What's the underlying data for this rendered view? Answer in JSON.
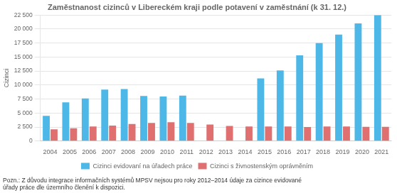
{
  "chart_data": {
    "type": "bar",
    "title": "Zaměstnanost cizinců v Libereckém kraji podle potavení v zaměstnání (k 31. 12.)",
    "ylabel": "Cizinci",
    "categories": [
      "2004",
      "2005",
      "2006",
      "2007",
      "2008",
      "2009",
      "2010",
      "2011",
      "2012",
      "2013",
      "2014",
      "2015",
      "2016",
      "2017",
      "2018",
      "2019",
      "2020",
      "2021"
    ],
    "series": [
      {
        "name": "Cizinci evidovaní na úřadech práce",
        "color": "#4db8e8",
        "values": [
          4500,
          6900,
          7600,
          9200,
          9300,
          8050,
          7950,
          8100,
          null,
          null,
          null,
          11200,
          12600,
          15300,
          17500,
          19000,
          21000,
          22500
        ]
      },
      {
        "name": "Cizinci s živnostenským oprávněním",
        "color": "#e07070",
        "values": [
          2100,
          2300,
          2600,
          2750,
          3050,
          3250,
          3350,
          3250,
          2950,
          2700,
          2600,
          2600,
          2600,
          2500,
          2600,
          2600,
          2550,
          2550
        ]
      }
    ],
    "ylim": [
      0,
      22500
    ],
    "yticks": [
      0,
      {
        "value": 2500,
        "label": "2 500"
      },
      {
        "value": 5000,
        "label": "5 000"
      },
      {
        "value": 7500,
        "label": "7 500"
      },
      {
        "value": 10000,
        "label": "10 000"
      },
      {
        "value": 12500,
        "label": "12 500"
      },
      {
        "value": 15000,
        "label": "15 000"
      },
      {
        "value": 17500,
        "label": "17 500"
      },
      {
        "value": 20000,
        "label": "20 000"
      },
      {
        "value": 22500,
        "label": "22 500"
      }
    ],
    "grid": true,
    "legend": "bottom",
    "annotations": [
      "Pozn.: Z důvodu integrace informačních systémů MPSV nejsou pro roky 2012–2014 údaje za cizince evidované",
      "úřady práce dle územního členění k dispozici."
    ]
  }
}
